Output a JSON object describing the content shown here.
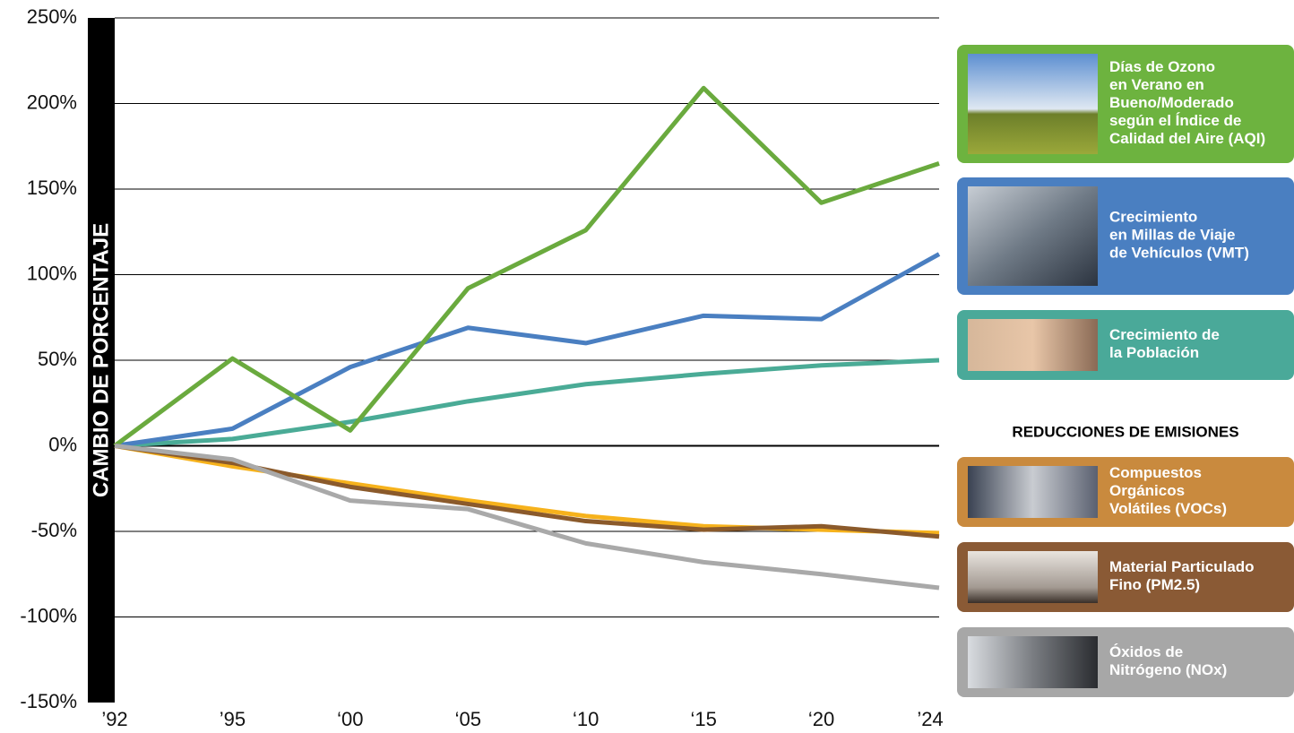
{
  "chart_data": {
    "type": "line",
    "y_axis_label": "CAMBIO DE PORCENTAJE",
    "legend_heading": "REDUCCIONES DE EMISIONES",
    "categories": [
      "’92",
      "’95",
      "‘00",
      "‘05",
      "‘10",
      "‘15",
      "‘20",
      "’24"
    ],
    "ylim": [
      -150,
      250
    ],
    "yticks": [
      {
        "value": -150,
        "label": "-150%"
      },
      {
        "value": -100,
        "label": "-100%"
      },
      {
        "value": -50,
        "label": "-50%"
      },
      {
        "value": 0,
        "label": "0%"
      },
      {
        "value": 50,
        "label": "50%"
      },
      {
        "value": 100,
        "label": "100%"
      },
      {
        "value": 150,
        "label": "150%"
      },
      {
        "value": 200,
        "label": "200%"
      },
      {
        "value": 250,
        "label": "250%"
      }
    ],
    "grid": true,
    "series": [
      {
        "name": "Días de Ozono\nen Verano en\nBueno/Moderado\nsegún el Índice de\nCalidad del Aire (AQI)",
        "color": "#6aaa3e",
        "legend_color": "#6db33f",
        "values": [
          0,
          51,
          9,
          92,
          126,
          209,
          142,
          165
        ]
      },
      {
        "name": "Crecimiento\nen Millas de Viaje\nde Vehículos (VMT)",
        "color": "#4a7fc1",
        "legend_color": "#4a7fc1",
        "values": [
          0,
          10,
          46,
          69,
          60,
          76,
          74,
          112
        ]
      },
      {
        "name": "Crecimiento de\nla Población",
        "color": "#4aab96",
        "legend_color": "#4aa999",
        "values": [
          0,
          4,
          14,
          26,
          36,
          42,
          47,
          50
        ]
      },
      {
        "name": "Compuestos\nOrgánicos\nVolátiles (VOCs)",
        "color": "#f6b21c",
        "legend_color": "#c98a3e",
        "values": [
          0,
          -12,
          -22,
          -32,
          -41,
          -47,
          -49,
          -51
        ]
      },
      {
        "name": "Material Particulado\nFino (PM2.5)",
        "color": "#8b5a2b",
        "legend_color": "#8a5a35",
        "values": [
          0,
          -10,
          -24,
          -34,
          -44,
          -49,
          -47,
          -53
        ]
      },
      {
        "name": "Óxidos de\nNitrógeno (NOx)",
        "color": "#a9a9a9",
        "legend_color": "#a7a7a7",
        "values": [
          0,
          -8,
          -32,
          -37,
          -57,
          -68,
          -75,
          -83
        ]
      }
    ]
  }
}
